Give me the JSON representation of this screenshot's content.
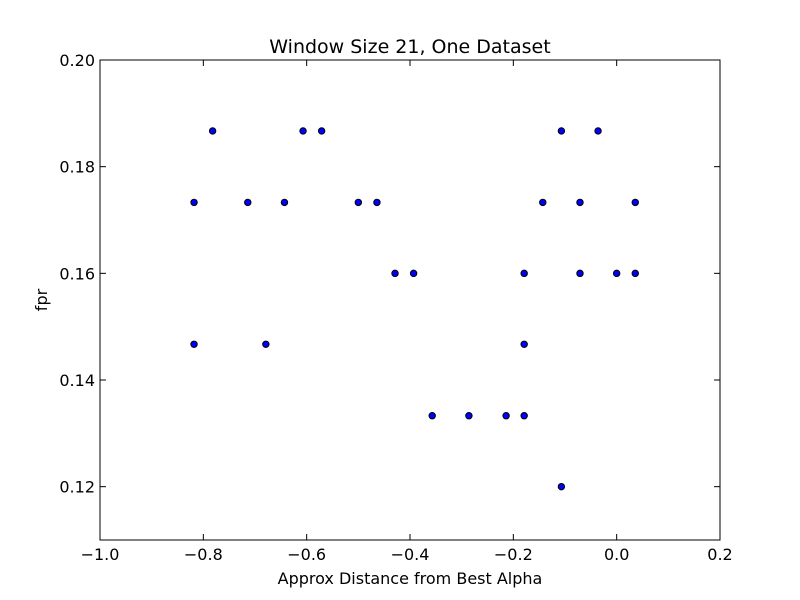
{
  "chart_data": {
    "type": "scatter",
    "title": "Window Size 21, One Dataset",
    "xlabel": "Approx Distance from Best Alpha",
    "ylabel": "fpr",
    "xlim": [
      -1.0,
      0.2
    ],
    "ylim": [
      0.11,
      0.2
    ],
    "xticks": [
      -1.0,
      -0.8,
      -0.6,
      -0.4,
      -0.2,
      0.0,
      0.2
    ],
    "xtick_labels": [
      "−1.0",
      "−0.8",
      "−0.6",
      "−0.4",
      "−0.2",
      "0.0",
      "0.2"
    ],
    "yticks": [
      0.12,
      0.14,
      0.16,
      0.18,
      0.2
    ],
    "ytick_labels": [
      "0.12",
      "0.14",
      "0.16",
      "0.18",
      "0.20"
    ],
    "grid": false,
    "marker_color": "#0000ff",
    "marker_edge_color": "#000000",
    "series": [
      {
        "x": [
          -0.782,
          -0.607,
          -0.571,
          -0.107,
          -0.036,
          -0.818,
          -0.714,
          -0.643,
          -0.5,
          -0.464,
          -0.143,
          -0.071,
          0.036,
          -0.429,
          -0.393,
          -0.179,
          -0.071,
          0.0,
          0.036,
          -0.818,
          -0.679,
          -0.179,
          -0.357,
          -0.286,
          -0.214,
          -0.179,
          -0.107
        ],
        "y": [
          0.1867,
          0.1867,
          0.1867,
          0.1867,
          0.1867,
          0.1733,
          0.1733,
          0.1733,
          0.1733,
          0.1733,
          0.1733,
          0.1733,
          0.1733,
          0.16,
          0.16,
          0.16,
          0.16,
          0.16,
          0.16,
          0.1467,
          0.1467,
          0.1467,
          0.1333,
          0.1333,
          0.1333,
          0.1333,
          0.12
        ]
      }
    ]
  }
}
